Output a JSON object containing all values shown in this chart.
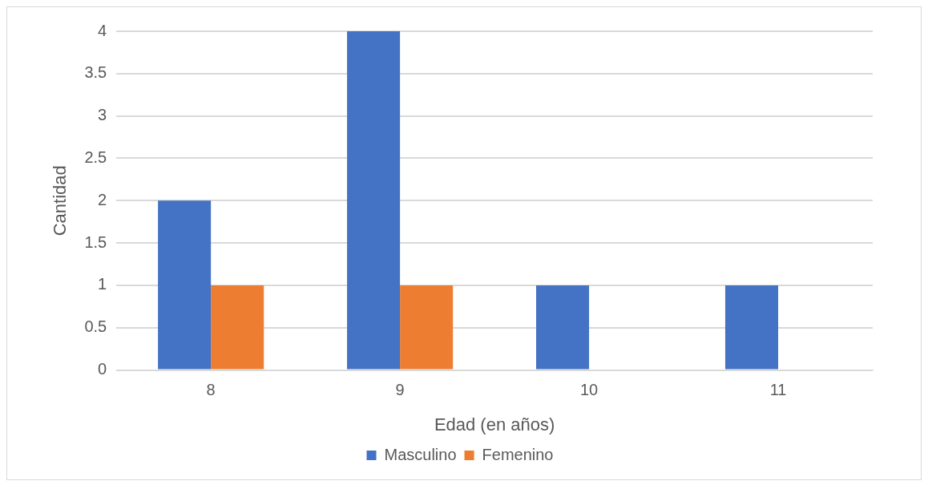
{
  "chart_data": {
    "type": "bar",
    "xlabel": "Edad (en años)",
    "ylabel": "Cantidad",
    "categories": [
      "8",
      "9",
      "10",
      "11"
    ],
    "series": [
      {
        "name": "Masculino",
        "color": "#4472c4",
        "values": [
          2,
          4,
          1,
          1
        ]
      },
      {
        "name": "Femenino",
        "color": "#ed7d31",
        "values": [
          1,
          1,
          0,
          0
        ]
      }
    ],
    "ylim": [
      0,
      4
    ],
    "yticks": [
      0,
      0.5,
      1,
      1.5,
      2,
      2.5,
      3,
      3.5,
      4
    ],
    "grid": "y",
    "legend": "bottom"
  }
}
